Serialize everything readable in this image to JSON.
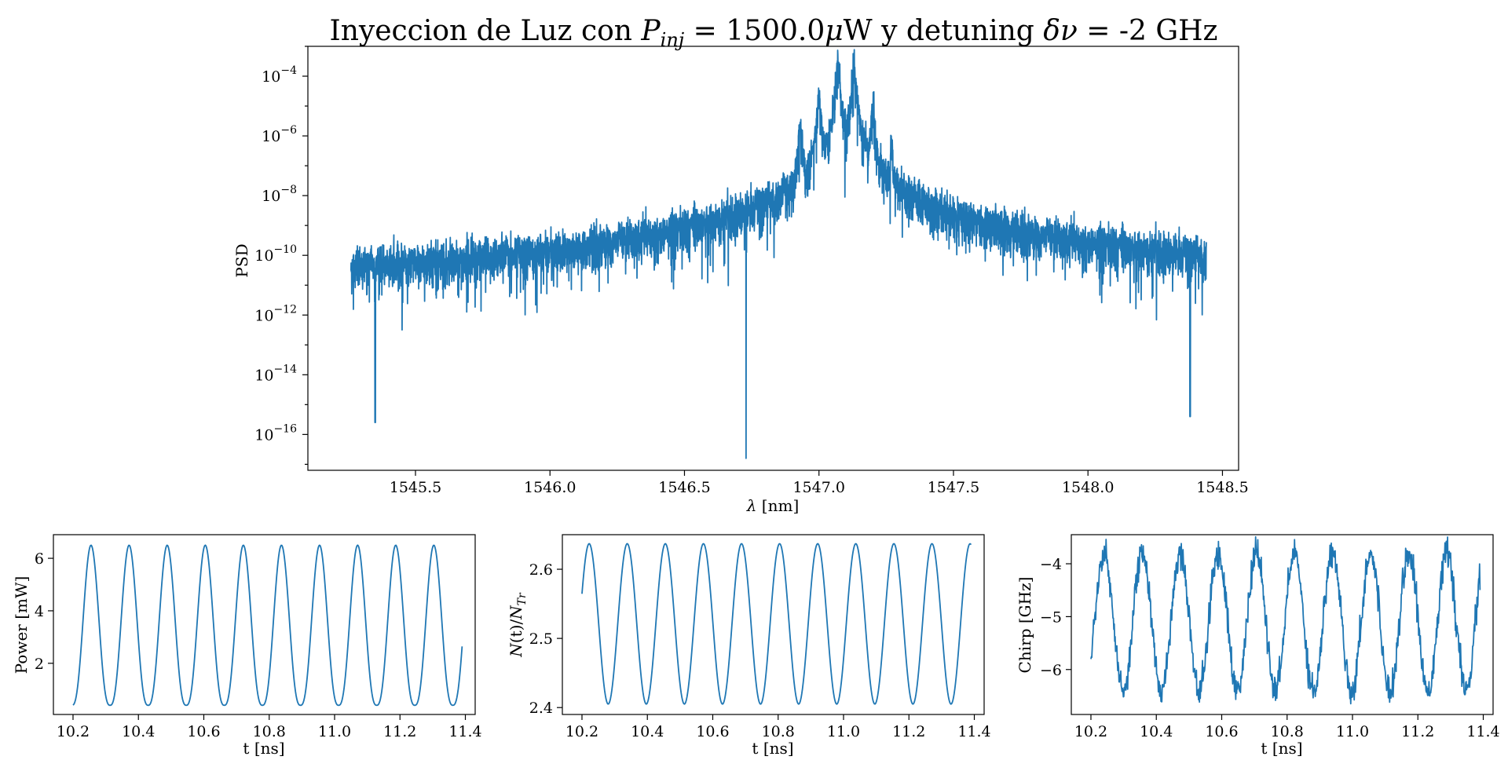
{
  "figure": {
    "title_prefix": "Inyeccion de Luz con ",
    "title_p": "P",
    "title_p_sub": "inj",
    "title_mid": " =  1500.0",
    "title_mu": "μ",
    "title_after_mu": "W y detuning ",
    "title_delta": "δν",
    "title_end": " = -2 GHz"
  },
  "chart_data": [
    {
      "id": "spectrum",
      "type": "line",
      "title": "Inyeccion de Luz con P_inj = 1500.0μW y detuning δν = -2 GHz",
      "xlabel_sym": "λ",
      "xlabel_unit": " [nm]",
      "ylabel": "PSD",
      "yscale": "log",
      "xlim": [
        1545.1,
        1548.56
      ],
      "ylim_exp": [
        -17.2,
        -3.0
      ],
      "xticks": [
        1545.5,
        1546.0,
        1546.5,
        1547.0,
        1547.5,
        1548.0,
        1548.5
      ],
      "xtick_labels": [
        "1545.5",
        "1546.0",
        "1546.5",
        "1547.0",
        "1547.5",
        "1548.0",
        "1548.5"
      ],
      "yticks_exp": [
        -4,
        -6,
        -8,
        -10,
        -12,
        -14,
        -16
      ],
      "ytick_base": "10",
      "ytick_exps": [
        "−4",
        "−6",
        "−8",
        "−10",
        "−12",
        "−14",
        "−16"
      ],
      "baseline_floor_exp": [
        [
          1545.26,
          -13.0
        ],
        [
          1546.0,
          -13.1
        ],
        [
          1546.6,
          -12.6
        ],
        [
          1546.84,
          -12.3
        ],
        [
          1546.93,
          -10.5
        ],
        [
          1547.0,
          -9.6
        ],
        [
          1547.07,
          -8.9
        ],
        [
          1547.13,
          -8.7
        ],
        [
          1547.2,
          -9.4
        ],
        [
          1547.27,
          -10.4
        ],
        [
          1547.3,
          -12.0
        ],
        [
          1547.6,
          -12.6
        ],
        [
          1548.44,
          -13.0
        ]
      ],
      "peaks": [
        {
          "x": 1546.73,
          "y_exp": -9.9
        },
        {
          "x": 1546.8,
          "y_exp": -8.4
        },
        {
          "x": 1546.87,
          "y_exp": -7.5
        },
        {
          "x": 1546.93,
          "y_exp": -5.6
        },
        {
          "x": 1547.0,
          "y_exp": -4.6
        },
        {
          "x": 1547.07,
          "y_exp": -3.6
        },
        {
          "x": 1547.13,
          "y_exp": -3.6
        },
        {
          "x": 1547.2,
          "y_exp": -5.0
        },
        {
          "x": 1547.27,
          "y_exp": -6.4
        },
        {
          "x": 1547.33,
          "y_exp": -7.9
        },
        {
          "x": 1547.4,
          "y_exp": -10.1
        }
      ],
      "dips": [
        {
          "x": 1545.35,
          "y_exp": -15.6
        },
        {
          "x": 1546.73,
          "y_exp": -16.8
        },
        {
          "x": 1548.38,
          "y_exp": -15.4
        }
      ]
    },
    {
      "id": "power",
      "type": "line",
      "xlabel": "t [ns]",
      "ylabel": "Power [mW]",
      "xlim": [
        10.14,
        11.43
      ],
      "ylim": [
        0.05,
        6.9
      ],
      "xticks": [
        10.2,
        10.4,
        10.6,
        10.8,
        11.0,
        11.2,
        11.4
      ],
      "xtick_labels": [
        "10.2",
        "10.4",
        "10.6",
        "10.8",
        "11.0",
        "11.2",
        "11.4"
      ],
      "yticks": [
        2,
        4,
        6
      ],
      "ytick_labels": [
        "2",
        "4",
        "6"
      ],
      "t_range": [
        10.2,
        11.39
      ],
      "min": 0.4,
      "max": 6.5,
      "period": 0.1165,
      "first_peak_t": 10.255
    },
    {
      "id": "carriers",
      "type": "line",
      "ylabel_N": "N",
      "ylabel_mid": "(t)/",
      "ylabel_N2": "N",
      "ylabel_sub": "Tr",
      "xlabel": "t [ns]",
      "xlim": [
        10.14,
        11.43
      ],
      "ylim": [
        2.39,
        2.65
      ],
      "xticks": [
        10.2,
        10.4,
        10.6,
        10.8,
        11.0,
        11.2,
        11.4
      ],
      "xtick_labels": [
        "10.2",
        "10.4",
        "10.6",
        "10.8",
        "11.0",
        "11.2",
        "11.4"
      ],
      "yticks": [
        2.4,
        2.5,
        2.6
      ],
      "ytick_labels": [
        "2.4",
        "2.5",
        "2.6"
      ],
      "t_range": [
        10.2,
        11.39
      ],
      "min": 2.405,
      "max": 2.637,
      "period": 0.1165,
      "first_peak_t": 10.222
    },
    {
      "id": "chirp",
      "type": "line",
      "xlabel": "t [ns]",
      "ylabel": "Chirp [GHz]",
      "xlim": [
        10.14,
        11.43
      ],
      "ylim": [
        -6.85,
        -3.45
      ],
      "xticks": [
        10.2,
        10.4,
        10.6,
        10.8,
        11.0,
        11.2,
        11.4
      ],
      "xtick_labels": [
        "10.2",
        "10.4",
        "10.6",
        "10.8",
        "11.0",
        "11.2",
        "11.4"
      ],
      "yticks": [
        -4,
        -5,
        -6
      ],
      "ytick_labels": [
        "−4",
        "−5",
        "−6"
      ],
      "t_range": [
        10.2,
        11.39
      ],
      "min": -6.4,
      "max": -3.8,
      "period": 0.1165,
      "first_peak_t": 10.24
    }
  ]
}
